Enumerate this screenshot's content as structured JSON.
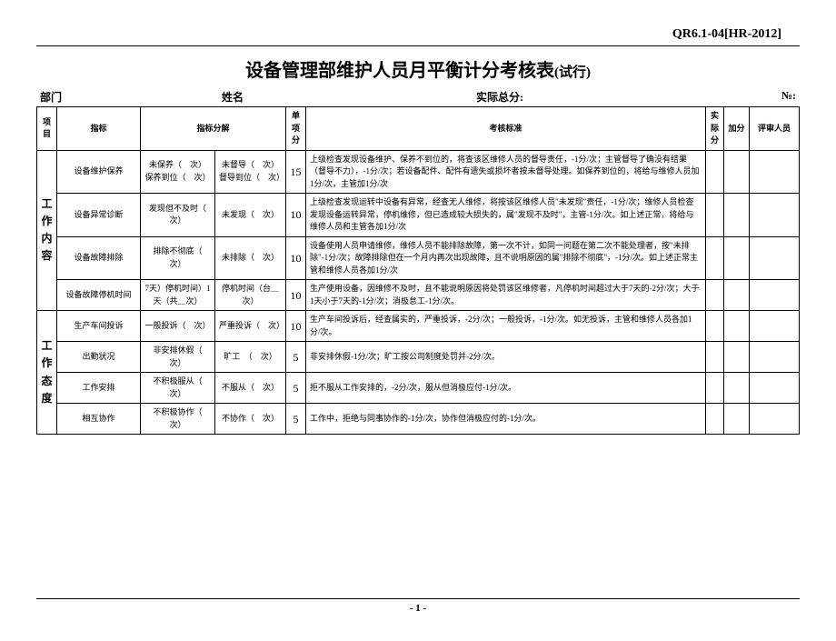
{
  "doc_code": "QR6.1-04[HR-2012]",
  "title_main": "设备管理部维护人员月平衡计分考核表",
  "title_sub": "(试行)",
  "meta": {
    "dept": "部门",
    "name": "姓名",
    "total": "实际总分:",
    "no": "№:"
  },
  "head": {
    "item": "项目",
    "metric": "指标",
    "detail": "指标分解",
    "unit": "单项分",
    "std": "考核标准",
    "actual": "实际分",
    "bonus": "加分",
    "reviewer": "评审人员"
  },
  "cat1": "工作内容",
  "cat2": "工作态度",
  "rows": [
    {
      "metric": "设备维护保养",
      "d1": "未保养（　次）\n保养到位（　次）",
      "d2": "未督导（　次）\n督导到位（　次）",
      "score": "15",
      "std": "上级检查发现设备维护、保养不到位的，将查该区维修人员的督导责任，-1分/次；主管督导了确没有结果（督导不力），-1分/次；若设备配件、配件有遗失或损坏者按未督导处理。如保养到位的，将给与维修人员加1分/次，主管加1分/次"
    },
    {
      "metric": "设备异常诊断",
      "d1": "发现但不及时（　次）",
      "d2": "未发现（　次）",
      "score": "10",
      "std": "上级检查发现运转中设备有异常，经查无人维修，将按该区维修人员\"未发现\"责任，-1分/次；维修人员检查发现设备运转异常，停机维修，但已造成较大损失的，属\"发现不及时\"，主管-1分/次。如上述正常，将给与维修人员和主管各加1分/次"
    },
    {
      "metric": "设备故障排除",
      "d1": "排除不彻底（　次）",
      "d2": "未排除（　次）",
      "score": "10",
      "std": "设备使用人员申请维修，维修人员不能排除故障，第一次不计，如同一问题在第二次不能处理者，按\"未排除\"-1分/次；故障排除但在一个月内再次出现故障，且不说明原因的属\"排除不彻底\"，-1分/次。如上述正常主管和维修人员各加1分/次"
    },
    {
      "metric": "设备故障停机时间",
      "d1": "7天）停机时间）1天（共＿次）",
      "d2": "停机时间（台＿次）",
      "score": "10",
      "std": "生产使用设备，因维修不及时，且不能说明原因将处罚该区维修者，凡停机时间超过大于7天的-2分/次；大于1天小于7天的-1分/次；消极怠工-1分/次。"
    },
    {
      "metric": "生产车间投诉",
      "d1": "一般投诉（　次）",
      "d2": "严重投诉（　次）",
      "score": "10",
      "std": "生产车间投诉后，经查属实的，严重投诉，-2分/次；一般投诉，-1分/次。如无投诉，主管和维修人员各加1分/次。"
    },
    {
      "metric": "出勤状况",
      "d1": "非安排休假（　次）",
      "d2": "旷工　（　次）",
      "score": "5",
      "std": "非安排休假-1分/次；旷工按公司制度处罚并-2分/次。"
    },
    {
      "metric": "工作安排",
      "d1": "不积极服从（　次）",
      "d2": "不服从（　次）",
      "score": "5",
      "std": "拒不服从工作安排的，-2分/次，服从但消极应付-1分/次。"
    },
    {
      "metric": "相互协作",
      "d1": "不积极协作（　次）",
      "d2": "不协作（　次）",
      "score": "5",
      "std": "工作中，拒绝与同事协作的-1分/次，协作但消极应付的-1分/次。"
    }
  ],
  "page_num": "- 1 -"
}
